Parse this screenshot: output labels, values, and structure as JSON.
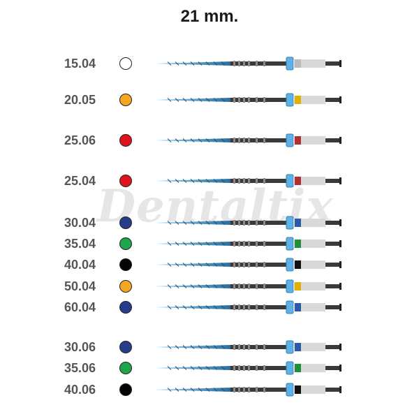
{
  "title": "21 mm.",
  "watermark": "Dentaltix",
  "files": [
    {
      "code": "15.04",
      "color": "#ffffff",
      "ring": "#bbbbbb"
    },
    {
      "code": "20.05",
      "color": "#f5a623",
      "ring": "#e2b100"
    },
    {
      "code": "25.06",
      "color": "#e0141e",
      "ring": "#b03030"
    },
    {
      "code": "25.04",
      "color": "#e0141e",
      "ring": "#b03030"
    },
    {
      "code": "30.04",
      "color": "#283c8c",
      "ring": "#2a5aa8"
    },
    {
      "code": "35.04",
      "color": "#1fa54a",
      "ring": "#1f8f3a"
    },
    {
      "code": "40.04",
      "color": "#050505",
      "ring": "#111111"
    },
    {
      "code": "50.04",
      "color": "#f5a623",
      "ring": "#e2b100"
    },
    {
      "code": "60.04",
      "color": "#283c8c",
      "ring": "#2a5aa8"
    },
    {
      "code": "30.06",
      "color": "#283c8c",
      "ring": "#2a5aa8"
    },
    {
      "code": "35.06",
      "color": "#1fa54a",
      "ring": "#1f8f3a"
    },
    {
      "code": "40.06",
      "color": "#050505",
      "ring": "#111111"
    }
  ]
}
